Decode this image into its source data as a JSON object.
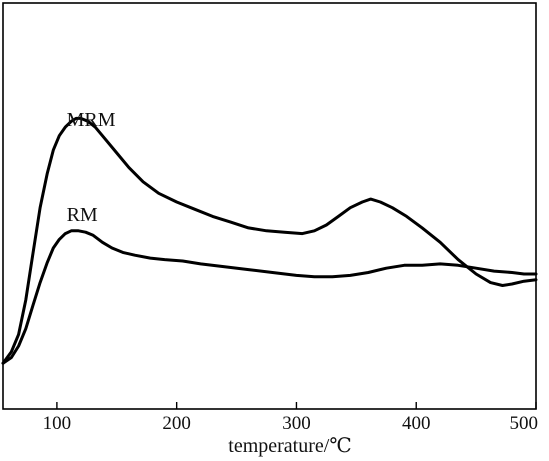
{
  "chart_data": {
    "type": "line",
    "title": "",
    "xlabel": "temperature/℃",
    "ylabel": "",
    "xlim": [
      55,
      500
    ],
    "ylim": [
      0,
      100
    ],
    "xticks": [
      100,
      200,
      300,
      400,
      500
    ],
    "yticks": [],
    "grid": false,
    "legend": "none",
    "series": [
      {
        "name": "MRM",
        "label_at": [
          58,
          83
        ],
        "x": [
          55,
          62,
          68,
          74,
          80,
          86,
          92,
          97,
          102,
          107,
          112,
          116,
          120,
          126,
          132,
          140,
          150,
          160,
          172,
          185,
          200,
          215,
          230,
          245,
          260,
          275,
          290,
          305,
          315,
          325,
          335,
          345,
          355,
          362,
          370,
          380,
          392,
          405,
          420,
          435,
          450,
          462,
          472,
          480,
          490,
          500
        ],
        "y": [
          2,
          6,
          12,
          24,
          40,
          56,
          68,
          76,
          81,
          84,
          86,
          87,
          87,
          86,
          84,
          80,
          75,
          70,
          65,
          61,
          58,
          55.5,
          53,
          51,
          49,
          48,
          47.5,
          47,
          48,
          50,
          53,
          56,
          58,
          59,
          58,
          56,
          53,
          49,
          44,
          38,
          33,
          30,
          29,
          29.5,
          30.5,
          31
        ]
      },
      {
        "name": "RM",
        "label_at": [
          58,
          50
        ],
        "x": [
          55,
          62,
          68,
          74,
          80,
          86,
          92,
          97,
          102,
          107,
          112,
          118,
          124,
          130,
          138,
          146,
          155,
          165,
          178,
          190,
          205,
          220,
          240,
          260,
          280,
          300,
          315,
          330,
          345,
          360,
          375,
          390,
          405,
          420,
          435,
          450,
          465,
          480,
          490,
          500
        ],
        "y": [
          2,
          4,
          8,
          14,
          22,
          30,
          37,
          42,
          45,
          47,
          48,
          48,
          47.5,
          46.5,
          44,
          42,
          40.5,
          39.5,
          38.5,
          38,
          37.5,
          36.5,
          35.5,
          34.5,
          33.5,
          32.5,
          32,
          32,
          32.5,
          33.5,
          35,
          36,
          36,
          36.5,
          36,
          35,
          34,
          33.5,
          33,
          33
        ]
      }
    ]
  }
}
